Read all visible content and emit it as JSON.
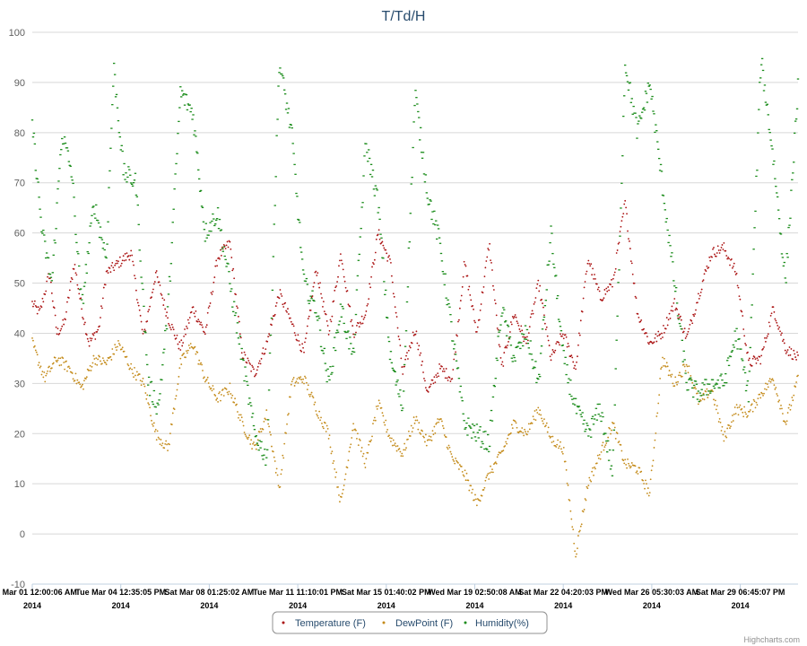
{
  "chart_data": {
    "type": "scatter",
    "title": "T/Td/H",
    "ylim": [
      -10,
      100
    ],
    "yticks": [
      "100",
      "90",
      "80",
      "70",
      "60",
      "50",
      "40",
      "30",
      "20",
      "10",
      "0",
      "-10"
    ],
    "xticks": [
      {
        "line1": "Sat Mar 01 12:00:06 AM",
        "line2": "2014"
      },
      {
        "line1": "Tue Mar 04 12:35:05 PM",
        "line2": "2014"
      },
      {
        "line1": "Sat Mar 08 01:25:02 AM",
        "line2": "2014"
      },
      {
        "line1": "Tue Mar 11 11:10:01 PM",
        "line2": "2014"
      },
      {
        "line1": "Sat Mar 15 01:40:02 PM",
        "line2": "2014"
      },
      {
        "line1": "Wed Mar 19 02:50:08 AM",
        "line2": "2014"
      },
      {
        "line1": "Sat Mar 22 04:20:03 PM",
        "line2": "2014"
      },
      {
        "line1": "Wed Mar 26 05:30:03 AM",
        "line2": "2014"
      },
      {
        "line1": "Sat Mar 29 06:45:07 PM",
        "line2": "2014"
      }
    ],
    "x_day_range": [
      1,
      32
    ],
    "grid": true,
    "legend_position": "bottom-center",
    "series": [
      {
        "name": "Temperature (F)",
        "color": "#aa1111",
        "key_days": [
          1.0,
          1.3,
          1.7,
          2.0,
          2.3,
          2.7,
          3.0,
          3.3,
          3.7,
          4.0,
          4.5,
          5.0,
          5.5,
          6.0,
          6.5,
          7.0,
          7.5,
          8.0,
          8.5,
          9.0,
          9.5,
          10.0,
          10.5,
          11.0,
          11.5,
          12.0,
          12.5,
          13.0,
          13.5,
          14.0,
          14.5,
          15.0,
          15.5,
          16.0,
          16.5,
          17.0,
          17.5,
          18.0,
          18.5,
          19.0,
          19.5,
          20.0,
          20.5,
          21.0,
          21.5,
          22.0,
          22.5,
          23.0,
          23.5,
          24.0,
          24.5,
          25.0,
          25.5,
          26.0,
          26.5,
          27.0,
          27.5,
          28.0,
          28.5,
          29.0,
          29.5,
          30.0,
          30.5,
          31.0,
          31.5,
          32.0
        ],
        "key_values": [
          46,
          44,
          52,
          40,
          42,
          54,
          45,
          38,
          41,
          52,
          54,
          56,
          39,
          52,
          43,
          37,
          45,
          40,
          55,
          58,
          36,
          32,
          38,
          48,
          42,
          36,
          53,
          40,
          56,
          40,
          44,
          60,
          54,
          32,
          41,
          28,
          33,
          31,
          54,
          40,
          58,
          33,
          44,
          38,
          50,
          35,
          40,
          33,
          55,
          47,
          50,
          66,
          44,
          38,
          40,
          46,
          39,
          48,
          56,
          57,
          52,
          34,
          35,
          45,
          37,
          35
        ]
      },
      {
        "name": "DewPoint (F)",
        "color": "#c48b1a",
        "key_days": [
          1.0,
          1.5,
          2.0,
          2.5,
          3.0,
          3.5,
          4.0,
          4.5,
          5.0,
          5.5,
          6.0,
          6.5,
          7.0,
          7.5,
          8.0,
          8.5,
          9.0,
          9.5,
          10.0,
          10.5,
          11.0,
          11.5,
          12.0,
          12.5,
          13.0,
          13.5,
          14.0,
          14.5,
          15.0,
          15.5,
          16.0,
          16.5,
          17.0,
          17.5,
          18.0,
          18.5,
          19.0,
          19.5,
          20.0,
          20.5,
          21.0,
          21.5,
          22.0,
          22.5,
          23.0,
          23.5,
          24.0,
          24.5,
          25.0,
          25.5,
          26.0,
          26.5,
          27.0,
          27.5,
          28.0,
          28.5,
          29.0,
          29.5,
          30.0,
          30.5,
          31.0,
          31.5,
          32.0
        ],
        "key_values": [
          38,
          31,
          35,
          33,
          29,
          35,
          34,
          38,
          33,
          30,
          20,
          17,
          34,
          38,
          31,
          27,
          29,
          22,
          17,
          24,
          9,
          30,
          31,
          25,
          20,
          6,
          22,
          14,
          26,
          19,
          16,
          23,
          18,
          23,
          15,
          12,
          6,
          12,
          16,
          22,
          20,
          25,
          19,
          17,
          -4,
          10,
          16,
          22,
          14,
          13,
          8,
          35,
          30,
          34,
          26,
          29,
          19,
          25,
          24,
          28,
          31,
          22,
          31
        ]
      },
      {
        "name": "Humidity(%)",
        "color": "#1a8c1a",
        "key_days": [
          1.0,
          1.4,
          1.8,
          2.2,
          2.6,
          3.0,
          3.5,
          4.0,
          4.3,
          4.7,
          5.2,
          5.7,
          6.1,
          6.5,
          7.0,
          7.5,
          8.0,
          8.5,
          9.0,
          9.5,
          10.0,
          10.5,
          11.0,
          11.5,
          12.0,
          12.5,
          13.0,
          13.5,
          14.0,
          14.5,
          15.0,
          15.5,
          16.0,
          16.5,
          17.0,
          17.5,
          18.0,
          18.5,
          19.0,
          19.5,
          20.0,
          20.5,
          21.0,
          21.5,
          22.0,
          22.5,
          23.0,
          23.5,
          24.0,
          24.5,
          25.0,
          25.5,
          26.0,
          26.5,
          27.0,
          27.5,
          28.0,
          28.5,
          29.0,
          29.5,
          30.0,
          30.5,
          31.0,
          31.5,
          32.0
        ],
        "key_values": [
          82,
          60,
          50,
          80,
          72,
          45,
          66,
          55,
          93,
          72,
          70,
          30,
          25,
          45,
          88,
          84,
          60,
          64,
          50,
          35,
          20,
          15,
          94,
          80,
          50,
          45,
          30,
          45,
          35,
          78,
          66,
          35,
          25,
          88,
          68,
          58,
          40,
          22,
          20,
          18,
          45,
          35,
          40,
          30,
          60,
          35,
          25,
          20,
          25,
          12,
          94,
          80,
          90,
          70,
          50,
          30,
          28,
          30,
          30,
          40,
          28,
          95,
          75,
          50,
          89
        ]
      }
    ]
  },
  "credits": "Highcharts.com"
}
